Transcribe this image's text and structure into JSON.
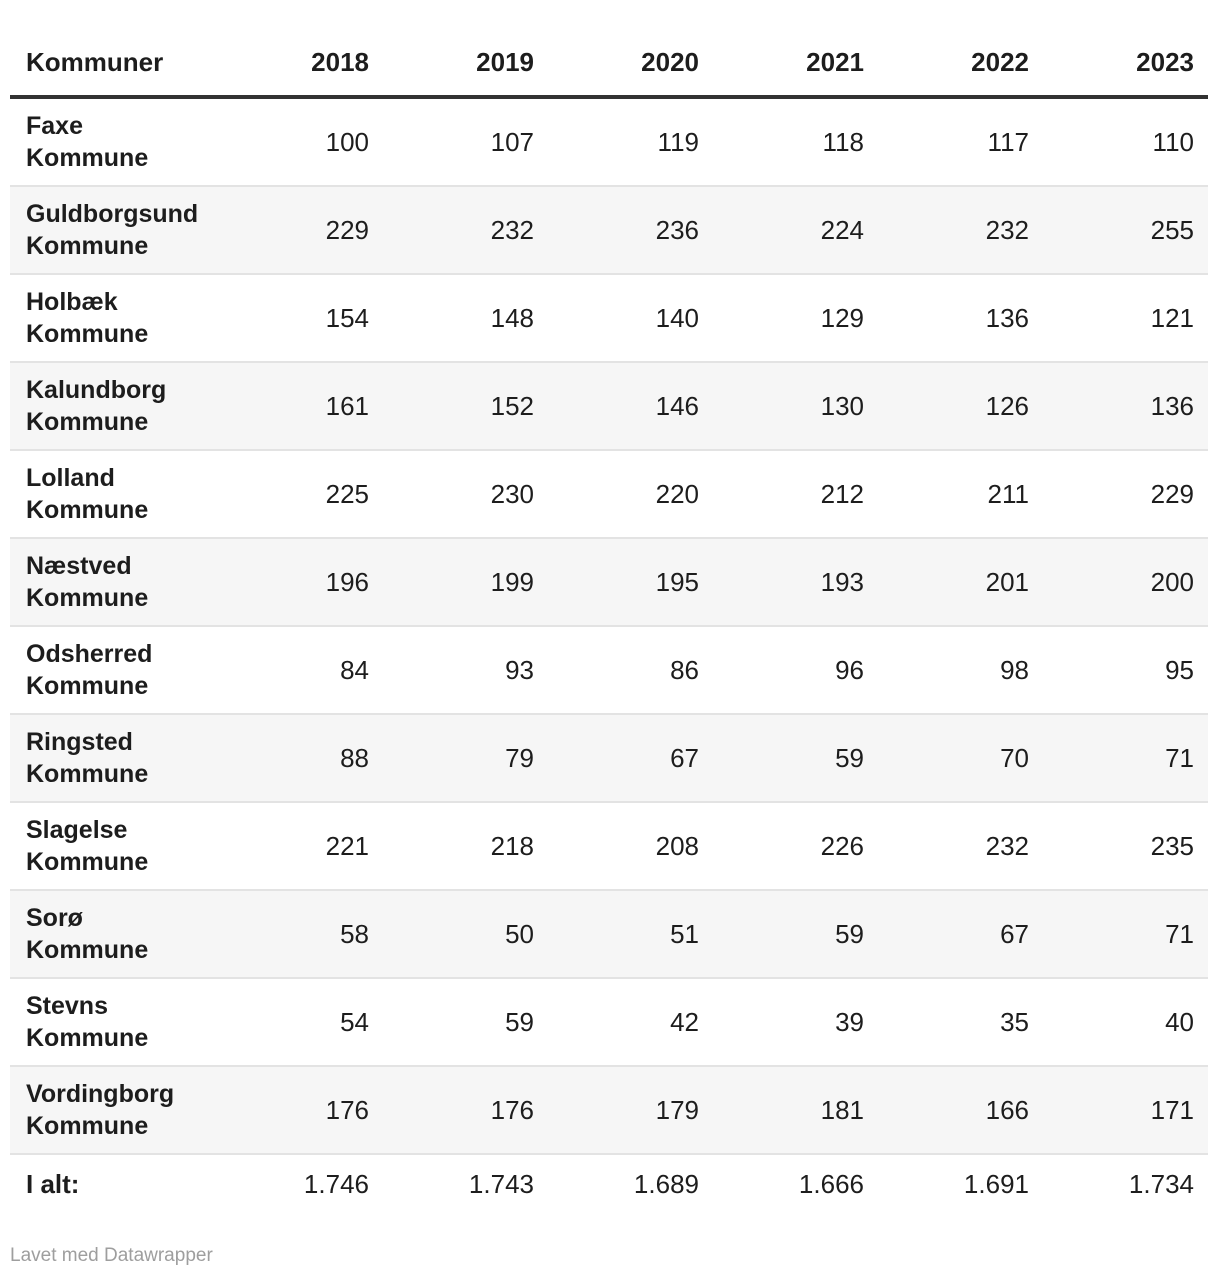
{
  "colors": {
    "text": "#1d1d1d",
    "header_rule": "#323232",
    "row_rule": "#e3e3e3",
    "stripe": "#f6f6f6",
    "credit_text": "#9e9e9e"
  },
  "table": {
    "columns": [
      "Kommuner",
      "2018",
      "2019",
      "2020",
      "2021",
      "2022",
      "2023"
    ],
    "rows": [
      {
        "name": [
          "Faxe",
          "Kommune"
        ],
        "values": [
          "100",
          "107",
          "119",
          "118",
          "117",
          "110"
        ]
      },
      {
        "name": [
          "Guldborgsund",
          "Kommune"
        ],
        "values": [
          "229",
          "232",
          "236",
          "224",
          "232",
          "255"
        ]
      },
      {
        "name": [
          "Holbæk",
          "Kommune"
        ],
        "values": [
          "154",
          "148",
          "140",
          "129",
          "136",
          "121"
        ]
      },
      {
        "name": [
          "Kalundborg",
          "Kommune"
        ],
        "values": [
          "161",
          "152",
          "146",
          "130",
          "126",
          "136"
        ]
      },
      {
        "name": [
          "Lolland",
          "Kommune"
        ],
        "values": [
          "225",
          "230",
          "220",
          "212",
          "211",
          "229"
        ]
      },
      {
        "name": [
          "Næstved",
          "Kommune"
        ],
        "values": [
          "196",
          "199",
          "195",
          "193",
          "201",
          "200"
        ]
      },
      {
        "name": [
          "Odsherred",
          "Kommune"
        ],
        "values": [
          "84",
          "93",
          "86",
          "96",
          "98",
          "95"
        ]
      },
      {
        "name": [
          "Ringsted",
          "Kommune"
        ],
        "values": [
          "88",
          "79",
          "67",
          "59",
          "70",
          "71"
        ]
      },
      {
        "name": [
          "Slagelse",
          "Kommune"
        ],
        "values": [
          "221",
          "218",
          "208",
          "226",
          "232",
          "235"
        ]
      },
      {
        "name": [
          "Sorø",
          "Kommune"
        ],
        "values": [
          "58",
          "50",
          "51",
          "59",
          "67",
          "71"
        ]
      },
      {
        "name": [
          "Stevns",
          "Kommune"
        ],
        "values": [
          "54",
          "59",
          "42",
          "39",
          "35",
          "40"
        ]
      },
      {
        "name": [
          "Vordingborg",
          "Kommune"
        ],
        "values": [
          "176",
          "176",
          "179",
          "181",
          "166",
          "171"
        ]
      }
    ],
    "total": {
      "label": "I alt:",
      "values": [
        "1.746",
        "1.743",
        "1.689",
        "1.666",
        "1.691",
        "1.734"
      ]
    }
  },
  "footer": {
    "credit": "Lavet med Datawrapper"
  },
  "chart_data": {
    "type": "table",
    "title": "",
    "columns": [
      "Kommuner",
      "2018",
      "2019",
      "2020",
      "2021",
      "2022",
      "2023"
    ],
    "categories": [
      2018,
      2019,
      2020,
      2021,
      2022,
      2023
    ],
    "series": [
      {
        "name": "Faxe Kommune",
        "values": [
          100,
          107,
          119,
          118,
          117,
          110
        ]
      },
      {
        "name": "Guldborgsund Kommune",
        "values": [
          229,
          232,
          236,
          224,
          232,
          255
        ]
      },
      {
        "name": "Holbæk Kommune",
        "values": [
          154,
          148,
          140,
          129,
          136,
          121
        ]
      },
      {
        "name": "Kalundborg Kommune",
        "values": [
          161,
          152,
          146,
          130,
          126,
          136
        ]
      },
      {
        "name": "Lolland Kommune",
        "values": [
          225,
          230,
          220,
          212,
          211,
          229
        ]
      },
      {
        "name": "Næstved Kommune",
        "values": [
          196,
          199,
          195,
          193,
          201,
          200
        ]
      },
      {
        "name": "Odsherred Kommune",
        "values": [
          84,
          93,
          86,
          96,
          98,
          95
        ]
      },
      {
        "name": "Ringsted Kommune",
        "values": [
          88,
          79,
          67,
          59,
          70,
          71
        ]
      },
      {
        "name": "Slagelse Kommune",
        "values": [
          221,
          218,
          208,
          226,
          232,
          235
        ]
      },
      {
        "name": "Sorø Kommune",
        "values": [
          58,
          50,
          51,
          59,
          67,
          71
        ]
      },
      {
        "name": "Stevns Kommune",
        "values": [
          54,
          59,
          42,
          39,
          35,
          40
        ]
      },
      {
        "name": "Vordingborg Kommune",
        "values": [
          176,
          176,
          179,
          181,
          166,
          171
        ]
      }
    ],
    "totals": {
      "label": "I alt:",
      "values": [
        1746,
        1743,
        1689,
        1666,
        1691,
        1734
      ]
    },
    "layout": {
      "striped_rows": true,
      "numbers_aligned": "right",
      "credit": "Lavet med Datawrapper"
    }
  }
}
